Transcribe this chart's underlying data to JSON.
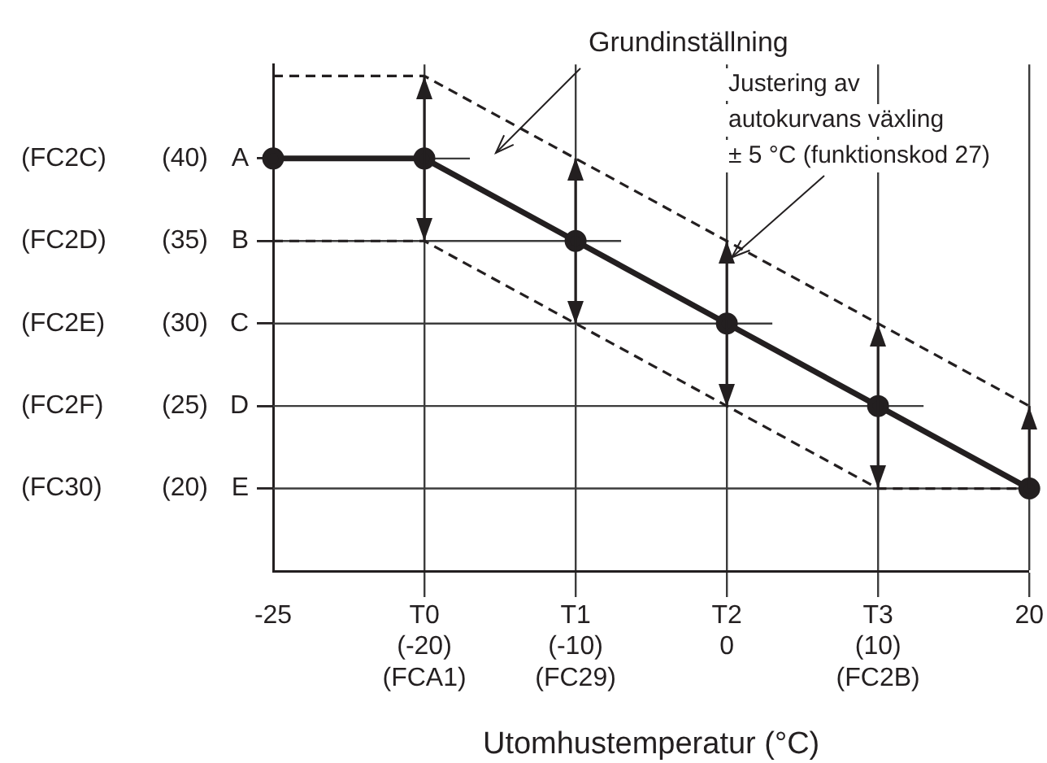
{
  "chart_data": {
    "type": "line",
    "xlabel": "Utomhustemperatur (°C)",
    "categories": [
      "-25",
      "T0\n(-20)\n(FCA1)",
      "T1\n(-10)\n(FC29)",
      "T2\n0",
      "T3\n(10)\n(FC2B)",
      "20"
    ],
    "series": [
      {
        "color": "#231f20",
        "values": [
          40,
          40,
          35,
          30,
          25,
          20
        ],
        "marker": "circle",
        "line_style": "solid",
        "errors": [
          null,
          5,
          5,
          5,
          5,
          [
            20,
            25
          ]
        ]
      },
      {
        "color": "#231f20",
        "values": [
          45,
          45,
          40,
          35,
          30,
          25
        ],
        "marker": "none",
        "line_style": "dashed"
      },
      {
        "color": "#231f20",
        "values": [
          35,
          35,
          30,
          25,
          20,
          20
        ],
        "marker": "none",
        "line_style": "dashed"
      }
    ],
    "ylim": [
      15,
      45.7
    ],
    "yticks": [
      {
        "value": 20,
        "label": "(20)"
      },
      {
        "value": 25,
        "label": "(25)"
      },
      {
        "value": 30,
        "label": "(30)"
      },
      {
        "value": 35,
        "label": "(35)"
      },
      {
        "value": 40,
        "label": "(40)"
      }
    ],
    "grid": true,
    "legend": false,
    "annotations": [
      "Grundinställning",
      {
        "text": "Justering av\nautokurvans växling\n± 5 °C (funktionskod 27)",
        "x": "T2\n0",
        "y": 34
      },
      "(FC30)",
      "E",
      "(FC2F)",
      "D",
      "(FC2E)",
      "C",
      "(FC2D)",
      "B",
      "(FC2C)",
      "A"
    ]
  }
}
